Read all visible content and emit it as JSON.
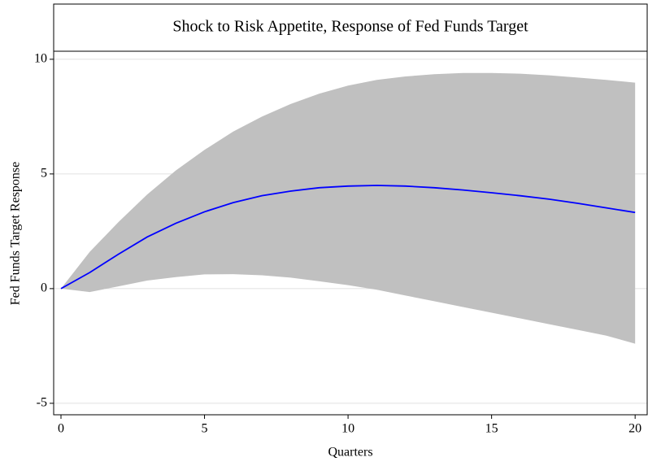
{
  "chart_data": {
    "type": "band-line",
    "title": "Shock to Risk Appetite, Response of Fed Funds Target",
    "xlabel": "Quarters",
    "ylabel": "Fed Funds Target Response",
    "x": [
      0,
      1,
      2,
      3,
      4,
      5,
      6,
      7,
      8,
      9,
      10,
      11,
      12,
      13,
      14,
      15,
      16,
      17,
      18,
      19,
      20
    ],
    "band": {
      "color": "#c0c0c0",
      "upper": [
        0,
        1.6,
        2.9,
        4.1,
        5.15,
        6.05,
        6.85,
        7.5,
        8.05,
        8.5,
        8.85,
        9.1,
        9.25,
        9.35,
        9.4,
        9.4,
        9.37,
        9.3,
        9.2,
        9.1,
        8.98
      ],
      "lower": [
        0,
        -0.15,
        0.1,
        0.35,
        0.5,
        0.62,
        0.63,
        0.58,
        0.48,
        0.32,
        0.15,
        -0.05,
        -0.3,
        -0.55,
        -0.8,
        -1.05,
        -1.3,
        -1.55,
        -1.8,
        -2.05,
        -2.4
      ]
    },
    "line": {
      "color": "#0000ff",
      "values": [
        0,
        0.7,
        1.5,
        2.25,
        2.85,
        3.35,
        3.75,
        4.05,
        4.25,
        4.4,
        4.47,
        4.5,
        4.47,
        4.4,
        4.3,
        4.18,
        4.05,
        3.9,
        3.72,
        3.52,
        3.32
      ]
    },
    "xlim": [
      -0.255,
      20.42
    ],
    "ylim": [
      -5.5,
      10.35
    ],
    "xticks": [
      0,
      5,
      10,
      15,
      20
    ],
    "yticks": [
      -5,
      0,
      5,
      10
    ],
    "grid": true
  }
}
